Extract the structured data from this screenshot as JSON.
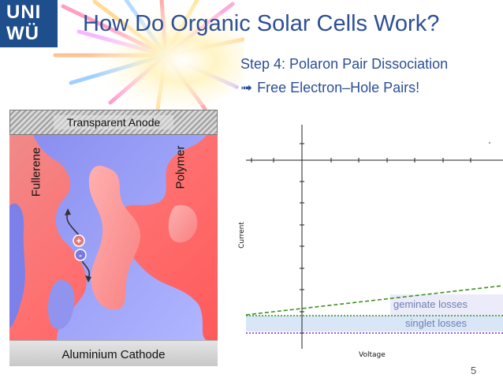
{
  "logo": {
    "line1": "UNI",
    "line2": "WÜ"
  },
  "slide": {
    "title": "How Do Organic Solar Cells Work?",
    "subtitle": "Step 4: Polaron Pair Dissociation",
    "bullet_icon": "right-arrow-icon",
    "bullet_arrow": "➟",
    "bullet": "Free Electron–Hole Pairs!",
    "page_number": "5"
  },
  "device": {
    "anode_label": "Transparent Anode",
    "cathode_label": "Aluminium Cathode",
    "fullerene_label": "Fullerene",
    "polymer_label": "Polymer",
    "hole_sign": "+",
    "electron_sign": "-",
    "colors": {
      "fullerene": "#f06e70",
      "polymer": "#8c8ff0",
      "hole": "#e07a7a",
      "electron": "#7a7adc"
    }
  },
  "plot": {
    "ylabel": "Current",
    "xlabel": "Voltage",
    "geminate_label": "geminate losses",
    "singlet_label": "singlet losses",
    "colors": {
      "geminate_line": "#3f8f1f",
      "singlet_line": "#3f8f1f",
      "dark_line": "#7b2fbf",
      "band": "#cfe0f5"
    }
  }
}
